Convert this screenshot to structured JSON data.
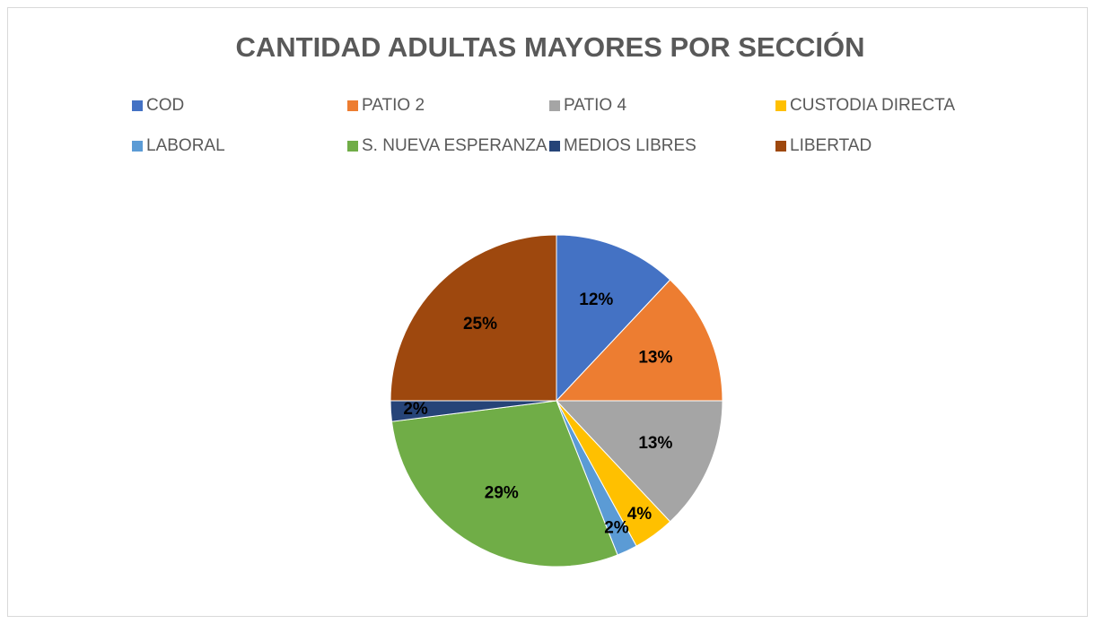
{
  "chart_data": {
    "type": "pie",
    "title": "CANTIDAD ADULTAS MAYORES POR SECCIÓN",
    "categories": [
      "COD",
      "PATIO 2",
      "PATIO 4",
      "CUSTODIA DIRECTA",
      "LABORAL",
      "S. NUEVA ESPERANZA",
      "MEDIOS LIBRES",
      "LIBERTAD"
    ],
    "values": [
      12,
      13,
      13,
      4,
      2,
      29,
      2,
      25
    ],
    "value_labels": [
      "12%",
      "13%",
      "13%",
      "4%",
      "2%",
      "29%",
      "2%",
      "25%"
    ],
    "colors": [
      "#4472c4",
      "#ed7d31",
      "#a5a5a5",
      "#ffc000",
      "#5b9bd5",
      "#70ad47",
      "#264478",
      "#9e480e"
    ],
    "legend": "top"
  }
}
